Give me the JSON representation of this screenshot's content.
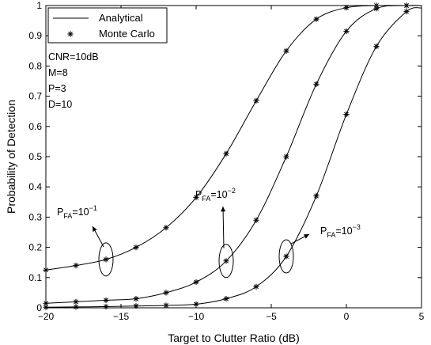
{
  "chart_data": {
    "type": "line",
    "xlabel": "Target to Clutter Ratio (dB)",
    "ylabel": "Probability of Detection",
    "xlim": [
      -20,
      5
    ],
    "ylim": [
      0,
      1
    ],
    "xticks": [
      -20,
      -15,
      -10,
      -5,
      0,
      5
    ],
    "yticks": [
      0,
      0.1,
      0.2,
      0.3,
      0.4,
      0.5,
      0.6,
      0.7,
      0.8,
      0.9,
      1
    ],
    "xtick_labels": [
      "−20",
      "−15",
      "−10",
      "−5",
      "0",
      "5"
    ],
    "ytick_labels": [
      "0",
      "0.1",
      "0.2",
      "0.3",
      "0.4",
      "0.5",
      "0.6",
      "0.7",
      "0.8",
      "0.9",
      "1"
    ],
    "grid": false,
    "legend": {
      "placement": "top-left",
      "entries": [
        {
          "label": "Analytical",
          "style": "line"
        },
        {
          "label": "Monte Carlo",
          "style": "asterisk"
        }
      ]
    },
    "parameters": [
      "CNR=10dB",
      "M=8",
      "P=3",
      "D=10"
    ],
    "series": [
      {
        "pfa_exponent": "−1",
        "x": [
          -20,
          -18,
          -16,
          -14,
          -12,
          -10,
          -8,
          -6,
          -4,
          -2,
          0,
          2,
          4
        ],
        "y": [
          0.125,
          0.14,
          0.16,
          0.2,
          0.265,
          0.365,
          0.51,
          0.685,
          0.85,
          0.955,
          0.993,
          1.0,
          1.0
        ]
      },
      {
        "pfa_exponent": "−2",
        "x": [
          -20,
          -18,
          -16,
          -14,
          -12,
          -10,
          -8,
          -6,
          -4,
          -2,
          0,
          2,
          4
        ],
        "y": [
          0.015,
          0.02,
          0.025,
          0.03,
          0.05,
          0.085,
          0.155,
          0.29,
          0.5,
          0.74,
          0.915,
          0.99,
          1.0
        ]
      },
      {
        "pfa_exponent": "−3",
        "x": [
          -20,
          -18,
          -16,
          -14,
          -12,
          -10,
          -8,
          -6,
          -4,
          -2,
          0,
          2,
          4
        ],
        "y": [
          0.002,
          0.003,
          0.004,
          0.006,
          0.008,
          0.012,
          0.03,
          0.07,
          0.17,
          0.37,
          0.64,
          0.865,
          0.98
        ]
      }
    ],
    "annotations": [
      {
        "label_main": "P",
        "label_sub": "FA",
        "label_eq": "=10",
        "label_sup": "−1",
        "x": -16,
        "y": 0.16
      },
      {
        "label_main": "P",
        "label_sub": "FA",
        "label_eq": "=10",
        "label_sup": "−2",
        "x": -8,
        "y": 0.155
      },
      {
        "label_main": "P",
        "label_sub": "FA",
        "label_eq": "=10",
        "label_sup": "−3",
        "x": -4,
        "y": 0.17
      }
    ]
  }
}
